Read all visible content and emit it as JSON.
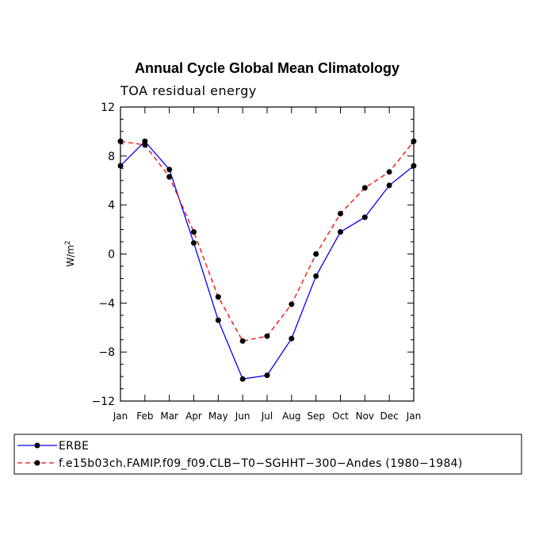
{
  "chart_data": {
    "type": "line",
    "title": "Annual Cycle Global Mean Climatology",
    "subtitle": "TOA residual energy",
    "ylabel": "W/m",
    "ylabel_superscript": "2",
    "xlabel": "",
    "ylim": [
      -12,
      12
    ],
    "yticks": [
      12,
      8,
      4,
      0,
      -4,
      -8,
      -12
    ],
    "ytick_labels": [
      "12",
      "8",
      "4",
      "0",
      "−4",
      "−8",
      "−12"
    ],
    "categories": [
      "Jan",
      "Feb",
      "Mar",
      "Apr",
      "May",
      "Jun",
      "Jul",
      "Aug",
      "Sep",
      "Oct",
      "Nov",
      "Dec",
      "Jan"
    ],
    "series": [
      {
        "name": "ERBE",
        "color": "#0000ff",
        "dash": "solid",
        "values": [
          7.2,
          9.2,
          6.9,
          0.9,
          -5.4,
          -10.2,
          -9.9,
          -6.9,
          -1.8,
          1.8,
          3.0,
          5.6,
          7.2
        ]
      },
      {
        "name": "f.e15b03ch.FAMIP.f09_f09.CLB−T0−SGHHT−300−Andes (1980−1984)",
        "color": "#ff0000",
        "dash": "dashed",
        "values": [
          9.2,
          8.9,
          6.3,
          1.8,
          -3.5,
          -7.1,
          -6.7,
          -4.1,
          0.0,
          3.3,
          5.4,
          6.7,
          9.2
        ]
      }
    ],
    "grid": false,
    "legend_position": "bottom"
  }
}
